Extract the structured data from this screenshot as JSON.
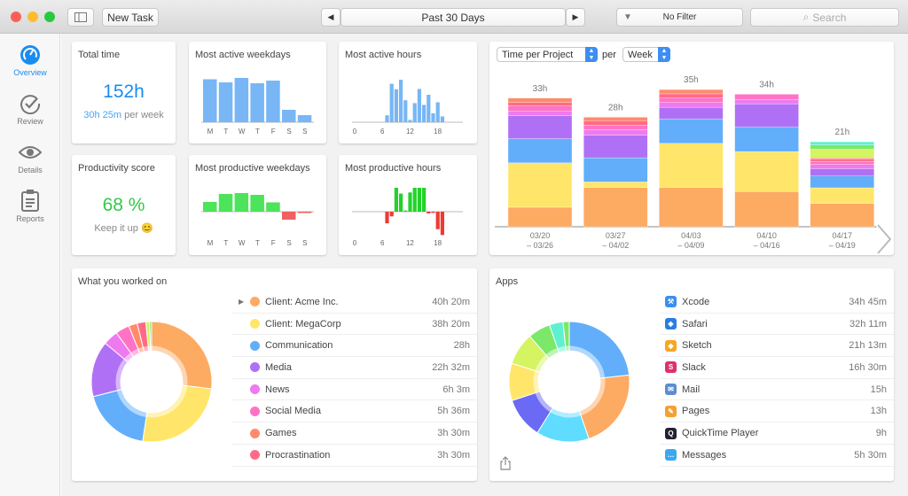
{
  "toolbar": {
    "new_task": "New Task",
    "date_range": "Past 30 Days",
    "filter": "No Filter",
    "search_placeholder": "Search"
  },
  "sidebar": {
    "items": [
      {
        "label": "Overview",
        "icon": "gauge-icon",
        "active": true
      },
      {
        "label": "Review",
        "icon": "checkmark-circle-icon"
      },
      {
        "label": "Details",
        "icon": "eye-icon"
      },
      {
        "label": "Reports",
        "icon": "clipboard-icon"
      }
    ]
  },
  "colors": {
    "accent": "#1a8cf0",
    "positive": "#34c84a",
    "negative": "#f0443a"
  },
  "total_time": {
    "title": "Total time",
    "value": "152h",
    "per_week_value": "30h 25m",
    "per_week_suffix": "per week"
  },
  "productivity": {
    "title": "Productivity score",
    "value": "68 %",
    "message": "Keep it up 😊"
  },
  "chart_data": [
    {
      "type": "bar",
      "title": "Most active weekdays",
      "categories": [
        "M",
        "T",
        "W",
        "T",
        "F",
        "S",
        "S"
      ],
      "values": [
        0.97,
        0.9,
        1.0,
        0.88,
        0.94,
        0.28,
        0.16
      ]
    },
    {
      "type": "bar",
      "title": "Most active hours",
      "x_ticks": [
        "0",
        "6",
        "12",
        "18"
      ],
      "x": [
        7,
        8,
        9,
        10,
        11,
        12,
        13,
        14,
        15,
        16,
        17,
        18,
        19
      ],
      "values": [
        24,
        133,
        114,
        147,
        76,
        8,
        66,
        115,
        60,
        95,
        31,
        69,
        20
      ]
    },
    {
      "type": "bar",
      "title": "Most productive weekdays",
      "categories": [
        "M",
        "T",
        "W",
        "T",
        "F",
        "S",
        "S"
      ],
      "values": [
        22,
        40,
        42,
        38,
        21,
        -18,
        -3
      ]
    },
    {
      "type": "bar",
      "title": "Most productive hours",
      "x_ticks": [
        "0",
        "6",
        "12",
        "18"
      ],
      "x": [
        7,
        8,
        9,
        10,
        11,
        12,
        13,
        14,
        15,
        16,
        17,
        18,
        19
      ],
      "values": [
        -40,
        -16,
        82,
        62,
        4,
        66,
        82,
        82,
        82,
        -6,
        -4,
        -60,
        -80
      ]
    },
    {
      "type": "bar",
      "stacked": true,
      "selector": "Time per Project",
      "per_label": "per",
      "period": "Week",
      "categories": [
        [
          "03/20",
          "– 03/26"
        ],
        [
          "03/27",
          "– 04/02"
        ],
        [
          "04/03",
          "– 04/09"
        ],
        [
          "04/10",
          "– 04/16"
        ],
        [
          "04/17",
          "– 04/19"
        ]
      ],
      "totals": [
        "33h",
        "28h",
        "35h",
        "34h",
        "21h"
      ],
      "segment_colors": [
        "#fdaa63",
        "#ffe66a",
        "#62aefa",
        "#b070f5",
        "#ef7af0",
        "#ff73c6",
        "#ff6b86",
        "#ff8b6a",
        "#d4f462",
        "#7be86a",
        "#5ff0d0"
      ],
      "segments": [
        [
          5,
          11.4,
          6.2,
          5.9,
          1.1,
          1.4,
          0.9,
          1.1
        ],
        [
          10.1,
          1.4,
          6.2,
          5.8,
          1.4,
          1.2,
          1.1,
          0.9
        ],
        [
          10.1,
          11.3,
          6.3,
          2.9,
          1.3,
          1.2,
          1.0,
          1.1
        ],
        [
          9,
          10.3,
          6.3,
          5.9,
          1.2,
          1.3
        ],
        [
          6,
          4,
          3,
          1.9,
          1.1,
          0.8,
          0.6,
          0.3,
          2.2,
          1.1,
          0.8
        ]
      ]
    },
    {
      "type": "pie",
      "title": "What you worked on",
      "donut": true,
      "items": [
        {
          "label": "Client: Acme Inc.",
          "value": "40h 20m",
          "hours": 40.33,
          "color": "#fdaa63",
          "expandable": true
        },
        {
          "label": "Client: MegaCorp",
          "value": "38h 20m",
          "hours": 38.33,
          "color": "#ffe66a"
        },
        {
          "label": "Communication",
          "value": "28h",
          "hours": 28,
          "color": "#62aefa"
        },
        {
          "label": "Media",
          "value": "22h 32m",
          "hours": 22.53,
          "color": "#b070f5"
        },
        {
          "label": "News",
          "value": "6h 3m",
          "hours": 6.05,
          "color": "#ef7af0"
        },
        {
          "label": "Social Media",
          "value": "5h 36m",
          "hours": 5.6,
          "color": "#ff73c6"
        },
        {
          "label": "Games",
          "value": "3h 30m",
          "hours": 3.5,
          "color": "#ff8b6a"
        },
        {
          "label": "Procrastination",
          "value": "3h 30m",
          "hours": 3.5,
          "color": "#ff6b86"
        }
      ]
    },
    {
      "type": "pie",
      "title": "Apps",
      "donut": true,
      "items": [
        {
          "label": "Xcode",
          "value": "34h 45m",
          "hours": 34.75,
          "color": "#62aefa",
          "icon": "xcode-icon"
        },
        {
          "label": "Safari",
          "value": "32h 11m",
          "hours": 32.18,
          "color": "#fdaa63",
          "icon": "safari-icon"
        },
        {
          "label": "Sketch",
          "value": "21h 13m",
          "hours": 21.22,
          "color": "#5fdcff",
          "icon": "sketch-icon"
        },
        {
          "label": "Slack",
          "value": "16h 30m",
          "hours": 16.5,
          "color": "#6a6af5",
          "icon": "slack-icon"
        },
        {
          "label": "Mail",
          "value": "15h",
          "hours": 15,
          "color": "#ffe66a",
          "icon": "mail-icon"
        },
        {
          "label": "Pages",
          "value": "13h",
          "hours": 13,
          "color": "#d4f462",
          "icon": "pages-icon"
        },
        {
          "label": "QuickTime Player",
          "value": "9h",
          "hours": 9,
          "color": "#7be86a",
          "icon": "quicktime-icon"
        },
        {
          "label": "Messages",
          "value": "5h 30m",
          "hours": 5.5,
          "color": "#5ff0d0",
          "icon": "messages-icon"
        }
      ]
    }
  ]
}
